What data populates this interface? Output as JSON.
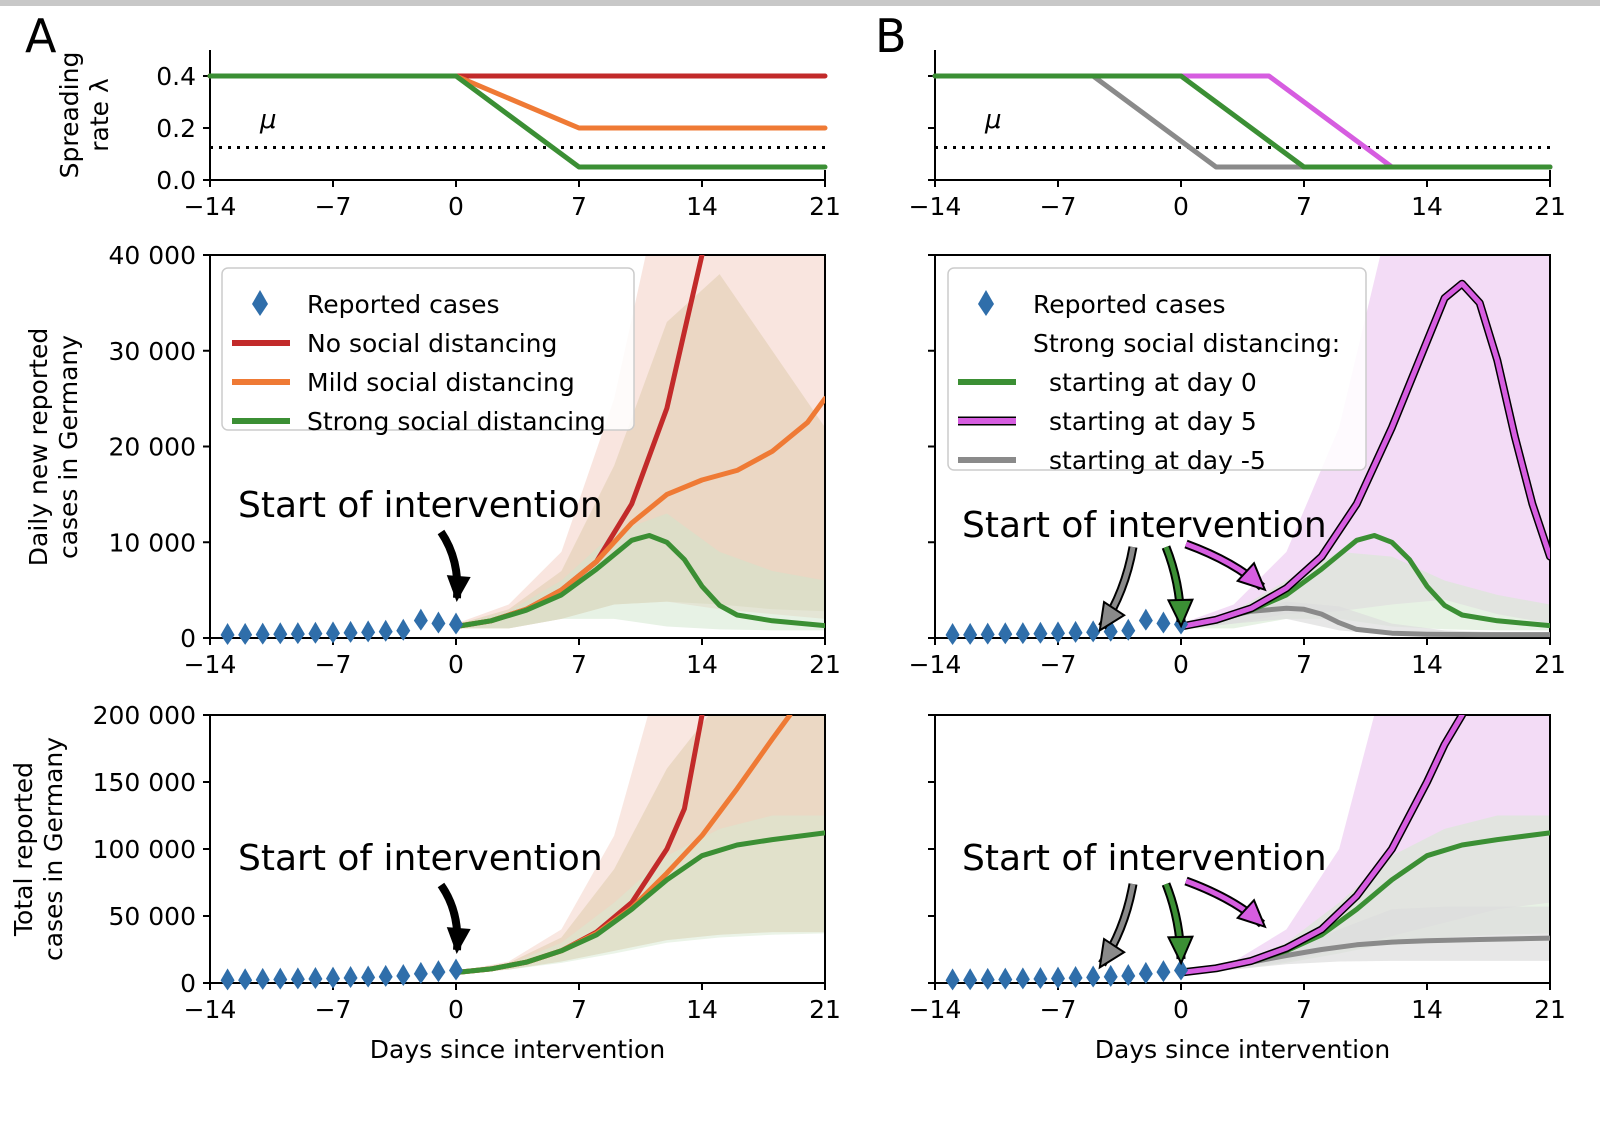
{
  "figure": {
    "panel_labels": [
      "A",
      "B"
    ],
    "x_axis_label": "Days since intervention",
    "annotation": "Start of intervention",
    "mu_label": "μ",
    "lambda_ylabel_lines": [
      "Spreading",
      "rate λ"
    ],
    "daily_ylabel_lines": [
      "Daily new reported",
      "cases in Germany"
    ],
    "total_ylabel_lines": [
      "Total reported",
      "cases in Germany"
    ],
    "legend_A": [
      "Reported cases",
      "No social distancing",
      "Mild social distancing",
      "Strong social distancing"
    ],
    "legend_B": [
      "Reported cases",
      "Strong social distancing:",
      "starting at day 0",
      "starting at day 5",
      "starting at day -5"
    ],
    "x_ticks": [
      "−14",
      "−7",
      "0",
      "7",
      "14",
      "21"
    ],
    "lambda_ticks": [
      "0.0",
      "0.2",
      "0.4"
    ],
    "daily_ticks": [
      "0",
      "10 000",
      "20 000",
      "30 000",
      "40 000"
    ],
    "total_ticks": [
      "0",
      "50 000",
      "100 000",
      "150 000",
      "200 000"
    ]
  },
  "colors": {
    "reported": "#2f6eaa",
    "none": "#c22a2a",
    "mild": "#ef7a35",
    "strong": "#3b8f34",
    "day5": "#d65de0",
    "dayminus5": "#8a8a8a",
    "magenta_fill": "#ebc4f0",
    "grey_fill": "#dddddd"
  },
  "chart_data": [
    {
      "type": "line",
      "panel": "A",
      "ylabel": "Spreading rate λ",
      "xlim": [
        -14,
        21
      ],
      "ylim": [
        0,
        0.5
      ],
      "mu": 0.125,
      "series": [
        {
          "name": "No social distancing",
          "x": [
            -14,
            0,
            21
          ],
          "y": [
            0.4,
            0.4,
            0.4
          ]
        },
        {
          "name": "Mild social distancing",
          "x": [
            -14,
            0,
            7,
            21
          ],
          "y": [
            0.4,
            0.4,
            0.2,
            0.2
          ]
        },
        {
          "name": "Strong social distancing",
          "x": [
            -14,
            0,
            7,
            21
          ],
          "y": [
            0.4,
            0.4,
            0.05,
            0.05
          ]
        }
      ]
    },
    {
      "type": "line",
      "panel": "B",
      "ylabel": "Spreading rate λ",
      "xlim": [
        -14,
        21
      ],
      "ylim": [
        0,
        0.5
      ],
      "mu": 0.125,
      "series": [
        {
          "name": "starting at day 0",
          "x": [
            -14,
            0,
            7,
            21
          ],
          "y": [
            0.4,
            0.4,
            0.05,
            0.05
          ]
        },
        {
          "name": "starting at day 5",
          "x": [
            -14,
            5,
            12,
            21
          ],
          "y": [
            0.4,
            0.4,
            0.05,
            0.05
          ]
        },
        {
          "name": "starting at day -5",
          "x": [
            -14,
            -5,
            2,
            21
          ],
          "y": [
            0.4,
            0.4,
            0.05,
            0.05
          ]
        }
      ]
    },
    {
      "type": "line",
      "panel": "A",
      "ylabel": "Daily new reported cases in Germany",
      "xlim": [
        -14,
        21
      ],
      "ylim": [
        0,
        40000
      ],
      "reported": {
        "x": [
          -13,
          -12,
          -11,
          -10,
          -9,
          -8,
          -7,
          -6,
          -5,
          -4,
          -3,
          -2,
          -1,
          0
        ],
        "y": [
          100,
          120,
          150,
          180,
          200,
          230,
          280,
          320,
          380,
          450,
          550,
          1600,
          1300,
          1200
        ]
      },
      "series": [
        {
          "name": "No social distancing",
          "x": [
            0,
            2,
            4,
            6,
            8,
            10,
            12,
            13,
            14
          ],
          "y": [
            1200,
            1800,
            3000,
            5000,
            8000,
            14000,
            24000,
            32000,
            40000
          ]
        },
        {
          "name": "Mild social distancing",
          "x": [
            0,
            2,
            4,
            6,
            8,
            10,
            12,
            14,
            16,
            18,
            20,
            21
          ],
          "y": [
            1200,
            1800,
            3000,
            5000,
            8000,
            12000,
            15000,
            16500,
            17500,
            19500,
            22500,
            25000
          ]
        },
        {
          "name": "Strong social distancing",
          "x": [
            0,
            2,
            4,
            6,
            8,
            10,
            11,
            12,
            13,
            14,
            15,
            16,
            18,
            21
          ],
          "y": [
            1200,
            1800,
            2900,
            4500,
            7200,
            10200,
            10700,
            10000,
            8200,
            5400,
            3400,
            2400,
            1800,
            1300
          ]
        }
      ]
    },
    {
      "type": "line",
      "panel": "B",
      "ylabel": "Daily new reported cases in Germany",
      "xlim": [
        -14,
        21
      ],
      "ylim": [
        0,
        40000
      ],
      "reported": {
        "x": [
          -13,
          -12,
          -11,
          -10,
          -9,
          -8,
          -7,
          -6,
          -5,
          -4,
          -3,
          -2,
          -1,
          0
        ],
        "y": [
          100,
          120,
          150,
          180,
          200,
          230,
          280,
          320,
          380,
          450,
          550,
          1600,
          1300,
          1200
        ]
      },
      "series": [
        {
          "name": "starting at day 0",
          "x": [
            0,
            2,
            4,
            6,
            8,
            10,
            11,
            12,
            13,
            14,
            15,
            16,
            18,
            21
          ],
          "y": [
            1200,
            1800,
            2900,
            4500,
            7200,
            10200,
            10700,
            10000,
            8200,
            5400,
            3400,
            2400,
            1800,
            1300
          ]
        },
        {
          "name": "starting at day 5",
          "x": [
            0,
            2,
            4,
            6,
            8,
            10,
            12,
            14,
            15,
            16,
            17,
            18,
            19,
            20,
            21
          ],
          "y": [
            1200,
            1900,
            3100,
            5200,
            8500,
            14000,
            22000,
            31000,
            35500,
            37000,
            35000,
            29000,
            21000,
            14000,
            8500
          ]
        },
        {
          "name": "starting at day -5",
          "x": [
            0,
            2,
            4,
            6,
            7,
            8,
            9,
            10,
            12,
            14,
            17,
            21
          ],
          "y": [
            1200,
            2000,
            2800,
            3100,
            3000,
            2500,
            1600,
            900,
            500,
            400,
            350,
            350
          ]
        }
      ]
    },
    {
      "type": "line",
      "panel": "A",
      "ylabel": "Total reported cases in Germany",
      "xlim": [
        -14,
        21
      ],
      "ylim": [
        0,
        200000
      ],
      "reported": {
        "x": [
          -13,
          -12,
          -11,
          -10,
          -9,
          -8,
          -7,
          -6,
          -5,
          -4,
          -3,
          -2,
          -1,
          0
        ],
        "y": [
          500,
          600,
          800,
          1000,
          1200,
          1500,
          1800,
          2200,
          2600,
          3100,
          3700,
          5300,
          6600,
          7800
        ]
      },
      "series": [
        {
          "name": "No social distancing",
          "x": [
            0,
            2,
            4,
            6,
            8,
            10,
            12,
            13,
            14
          ],
          "y": [
            7800,
            10500,
            15500,
            24000,
            38000,
            60000,
            100000,
            130000,
            200000
          ]
        },
        {
          "name": "Mild social distancing",
          "x": [
            0,
            2,
            4,
            6,
            8,
            10,
            12,
            14,
            16,
            18,
            19
          ],
          "y": [
            7800,
            10500,
            15500,
            24000,
            37000,
            56000,
            82000,
            110000,
            145000,
            182000,
            200000
          ]
        },
        {
          "name": "Strong social distancing",
          "x": [
            0,
            2,
            4,
            6,
            8,
            10,
            12,
            14,
            16,
            18,
            21
          ],
          "y": [
            7800,
            10500,
            15500,
            24000,
            36000,
            55000,
            77000,
            95000,
            103000,
            107000,
            112000
          ]
        }
      ]
    },
    {
      "type": "line",
      "panel": "B",
      "ylabel": "Total reported cases in Germany",
      "xlim": [
        -14,
        21
      ],
      "ylim": [
        0,
        200000
      ],
      "reported": {
        "x": [
          -13,
          -12,
          -11,
          -10,
          -9,
          -8,
          -7,
          -6,
          -5,
          -4,
          -3,
          -2,
          -1,
          0
        ],
        "y": [
          500,
          600,
          800,
          1000,
          1200,
          1500,
          1800,
          2200,
          2600,
          3100,
          3700,
          5300,
          6600,
          7800
        ]
      },
      "series": [
        {
          "name": "starting at day 0",
          "x": [
            0,
            2,
            4,
            6,
            8,
            10,
            12,
            14,
            16,
            18,
            21
          ],
          "y": [
            7800,
            10500,
            15500,
            24000,
            36000,
            55000,
            77000,
            95000,
            103000,
            107000,
            112000
          ]
        },
        {
          "name": "starting at day 5",
          "x": [
            0,
            2,
            4,
            6,
            8,
            10,
            12,
            14,
            15,
            16
          ],
          "y": [
            7800,
            11000,
            16500,
            26000,
            40000,
            65000,
            100000,
            150000,
            178000,
            200000
          ]
        },
        {
          "name": "starting at day -5",
          "x": [
            0,
            2,
            4,
            6,
            8,
            10,
            12,
            14,
            17,
            21
          ],
          "y": [
            7800,
            11000,
            15500,
            20500,
            25000,
            28500,
            30500,
            31500,
            32500,
            33500
          ]
        }
      ]
    }
  ]
}
